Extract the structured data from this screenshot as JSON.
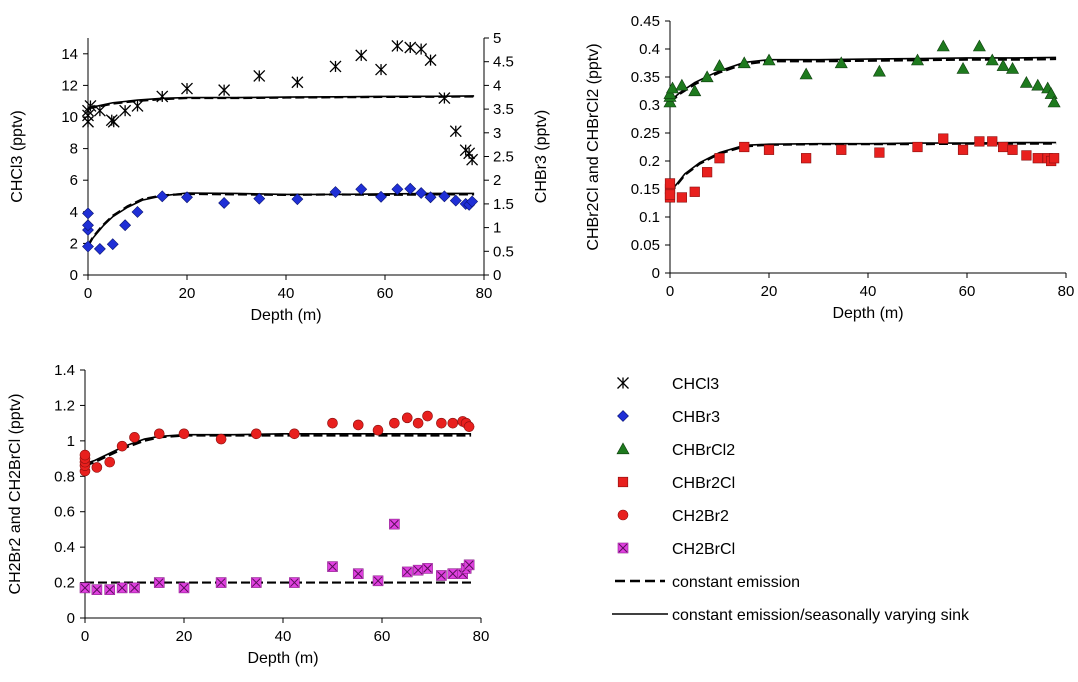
{
  "chart_data": [
    {
      "type": "scatter",
      "xlabel": "Depth (m)",
      "ylabel": "CHCl3 (pptv)",
      "y2label": "CHBr3 (pptv)",
      "xlim": [
        0,
        80
      ],
      "ylim": [
        0,
        15
      ],
      "y2lim": [
        0,
        5
      ],
      "xticks": [
        "0",
        "20",
        "40",
        "60",
        "80"
      ],
      "yticks": [
        "0",
        "2",
        "4",
        "6",
        "8",
        "10",
        "12",
        "14"
      ],
      "y2ticks": [
        "0",
        "0.5",
        "1",
        "1.5",
        "2",
        "2.5",
        "3",
        "3.5",
        "4",
        "4.5",
        "5"
      ],
      "series": [
        {
          "name": "CHCl3",
          "marker": "star",
          "axis": "y",
          "x": [
            0,
            0,
            0,
            0.5,
            2.4,
            4.8,
            5.2,
            7.5,
            10,
            15,
            20,
            27.5,
            34.6,
            42.3,
            50,
            55.2,
            59.2,
            62.5,
            65.1,
            67.3,
            69.2,
            72,
            74.3,
            76.3,
            77,
            77.6
          ],
          "y": [
            9.7,
            10.1,
            10.4,
            10.7,
            10.4,
            9.8,
            9.7,
            10.4,
            10.7,
            11.3,
            11.8,
            11.7,
            12.6,
            12.2,
            13.2,
            13.9,
            13.0,
            14.5,
            14.4,
            14.3,
            13.6,
            11.2,
            9.1,
            7.9,
            7.7,
            7.3
          ]
        },
        {
          "name": "CHBr3",
          "marker": "diamond",
          "axis": "y2",
          "x": [
            0,
            0,
            0,
            0,
            2.4,
            5,
            7.5,
            10,
            15,
            20,
            27.5,
            34.6,
            42.3,
            50,
            55.2,
            59.2,
            62.5,
            65.1,
            67.3,
            69.2,
            72,
            74.3,
            76.3,
            77,
            77.6
          ],
          "y": [
            0.6,
            0.95,
            1.05,
            1.3,
            0.55,
            0.65,
            1.05,
            1.33,
            1.66,
            1.64,
            1.52,
            1.61,
            1.6,
            1.75,
            1.81,
            1.65,
            1.81,
            1.82,
            1.73,
            1.64,
            1.66,
            1.57,
            1.5,
            1.48,
            1.55
          ]
        }
      ],
      "lines": [
        {
          "name": "constant emission",
          "axis": "y",
          "style": "dashed",
          "x": [
            0,
            2,
            5,
            10,
            15,
            20,
            30,
            40,
            50,
            60,
            70,
            78
          ],
          "y": [
            10.55,
            10.65,
            10.85,
            11.02,
            11.13,
            11.2,
            11.2,
            11.23,
            11.25,
            11.27,
            11.28,
            11.3
          ]
        },
        {
          "name": "constant emission/seasonally varying sink",
          "axis": "y",
          "style": "solid",
          "x": [
            0,
            2,
            5,
            10,
            15,
            20,
            30,
            40,
            50,
            60,
            70,
            78
          ],
          "y": [
            10.6,
            10.7,
            10.9,
            11.07,
            11.18,
            11.23,
            11.23,
            11.26,
            11.28,
            11.3,
            11.31,
            11.33
          ]
        },
        {
          "name": "constant emission",
          "axis": "y2",
          "style": "dashed",
          "x": [
            0,
            1,
            3,
            5,
            8,
            11,
            15,
            20,
            30,
            40,
            50,
            60,
            70,
            78
          ],
          "y": [
            0.62,
            0.8,
            1.05,
            1.25,
            1.45,
            1.6,
            1.68,
            1.71,
            1.7,
            1.69,
            1.7,
            1.69,
            1.7,
            1.7
          ]
        },
        {
          "name": "constant emission/seasonally varying sink",
          "axis": "y2",
          "style": "solid",
          "x": [
            0,
            1,
            3,
            5,
            8,
            11,
            15,
            20,
            30,
            40,
            50,
            60,
            70,
            78
          ],
          "y": [
            0.6,
            0.78,
            1.03,
            1.23,
            1.43,
            1.58,
            1.67,
            1.73,
            1.72,
            1.7,
            1.7,
            1.71,
            1.72,
            1.72
          ]
        }
      ]
    },
    {
      "type": "scatter",
      "xlabel": "Depth (m)",
      "ylabel": "CHBr2Cl and CHBrCl2 (pptv)",
      "xlim": [
        0,
        80
      ],
      "ylim": [
        0,
        0.45
      ],
      "xticks": [
        "0",
        "20",
        "40",
        "60",
        "80"
      ],
      "yticks": [
        "0",
        "0.05",
        "0.1",
        "0.15",
        "0.2",
        "0.25",
        "0.3",
        "0.35",
        "0.4",
        "0.45"
      ],
      "series": [
        {
          "name": "CHBrCl2",
          "marker": "triangle",
          "x": [
            0,
            0,
            0,
            0.5,
            2.4,
            5,
            7.5,
            10,
            15,
            20,
            27.5,
            34.6,
            42.3,
            50,
            55.2,
            59.2,
            62.5,
            65.1,
            67.3,
            69.2,
            72,
            74.3,
            76.3,
            77,
            77.6
          ],
          "y": [
            0.305,
            0.315,
            0.32,
            0.33,
            0.335,
            0.325,
            0.35,
            0.37,
            0.375,
            0.38,
            0.355,
            0.375,
            0.36,
            0.38,
            0.405,
            0.365,
            0.405,
            0.38,
            0.37,
            0.365,
            0.34,
            0.335,
            0.33,
            0.32,
            0.305
          ]
        },
        {
          "name": "CHBr2Cl",
          "marker": "square",
          "x": [
            0,
            0,
            0,
            0,
            2.4,
            5,
            7.5,
            10,
            15,
            20,
            27.5,
            34.6,
            42.3,
            50,
            55.2,
            59.2,
            62.5,
            65.1,
            67.3,
            69.2,
            72,
            74.3,
            76.3,
            77,
            77.6
          ],
          "y": [
            0.135,
            0.15,
            0.16,
            0.14,
            0.135,
            0.145,
            0.18,
            0.205,
            0.225,
            0.22,
            0.205,
            0.22,
            0.215,
            0.225,
            0.24,
            0.22,
            0.235,
            0.235,
            0.225,
            0.22,
            0.21,
            0.205,
            0.205,
            0.2,
            0.205
          ]
        }
      ],
      "lines": [
        {
          "name": "constant emission",
          "style": "dashed",
          "x": [
            0,
            2,
            5,
            8,
            10,
            15,
            20,
            30,
            40,
            50,
            60,
            70,
            78
          ],
          "y": [
            0.305,
            0.32,
            0.337,
            0.35,
            0.358,
            0.373,
            0.378,
            0.378,
            0.379,
            0.38,
            0.381,
            0.381,
            0.382
          ]
        },
        {
          "name": "constant emission/seasonally varying sink",
          "style": "solid",
          "x": [
            0,
            2,
            5,
            8,
            10,
            15,
            20,
            30,
            40,
            50,
            60,
            70,
            78
          ],
          "y": [
            0.307,
            0.322,
            0.34,
            0.353,
            0.361,
            0.376,
            0.381,
            0.381,
            0.382,
            0.383,
            0.384,
            0.384,
            0.385
          ]
        },
        {
          "name": "constant emission",
          "style": "dashed",
          "x": [
            0,
            1,
            3,
            6,
            10,
            15,
            20,
            30,
            40,
            50,
            60,
            70,
            78
          ],
          "y": [
            0.14,
            0.153,
            0.175,
            0.195,
            0.213,
            0.226,
            0.229,
            0.23,
            0.23,
            0.23,
            0.231,
            0.231,
            0.231
          ]
        },
        {
          "name": "constant emission/seasonally varying sink",
          "style": "solid",
          "x": [
            0,
            1,
            3,
            6,
            10,
            15,
            20,
            30,
            40,
            50,
            60,
            70,
            78
          ],
          "y": [
            0.142,
            0.155,
            0.177,
            0.197,
            0.215,
            0.228,
            0.23,
            0.231,
            0.231,
            0.232,
            0.232,
            0.233,
            0.233
          ]
        }
      ]
    },
    {
      "type": "scatter",
      "xlabel": "Depth (m)",
      "ylabel": "CH2Br2 and CH2BrCl (pptv)",
      "xlim": [
        0,
        80
      ],
      "ylim": [
        0,
        1.4
      ],
      "xticks": [
        "0",
        "20",
        "40",
        "60",
        "80"
      ],
      "yticks": [
        "0",
        "0.2",
        "0.4",
        "0.6",
        "0.8",
        "1",
        "1.2",
        "1.4"
      ],
      "series": [
        {
          "name": "CH2Br2",
          "marker": "circle",
          "x": [
            0,
            0,
            0,
            0,
            0,
            2.4,
            5,
            7.5,
            10,
            15,
            20,
            27.5,
            34.6,
            42.3,
            50,
            55.2,
            59.2,
            62.5,
            65.1,
            67.3,
            69.2,
            72,
            74.3,
            76.3,
            77,
            77.6
          ],
          "y": [
            0.83,
            0.86,
            0.88,
            0.9,
            0.92,
            0.85,
            0.88,
            0.97,
            1.02,
            1.04,
            1.04,
            1.01,
            1.04,
            1.04,
            1.1,
            1.09,
            1.06,
            1.1,
            1.13,
            1.1,
            1.14,
            1.1,
            1.1,
            1.11,
            1.1,
            1.08
          ]
        },
        {
          "name": "CH2BrCl",
          "marker": "square-x",
          "x": [
            0,
            2.4,
            5,
            7.5,
            10,
            15,
            20,
            27.5,
            34.6,
            42.3,
            50,
            55.2,
            59.2,
            62.5,
            65.1,
            67.3,
            69.2,
            72,
            74.3,
            76.3,
            77,
            77.6
          ],
          "y": [
            0.17,
            0.16,
            0.16,
            0.17,
            0.17,
            0.2,
            0.17,
            0.2,
            0.2,
            0.2,
            0.29,
            0.25,
            0.21,
            0.53,
            0.26,
            0.27,
            0.28,
            0.24,
            0.25,
            0.25,
            0.28,
            0.3
          ]
        }
      ],
      "lines": [
        {
          "name": "constant emission",
          "style": "dashed",
          "x": [
            0,
            2,
            5,
            8,
            12,
            15,
            20,
            30,
            40,
            50,
            60,
            70,
            78
          ],
          "y": [
            0.86,
            0.88,
            0.92,
            0.96,
            1.0,
            1.02,
            1.03,
            1.03,
            1.03,
            1.03,
            1.03,
            1.03,
            1.03
          ]
        },
        {
          "name": "constant emission/seasonally varying sink",
          "style": "solid",
          "x": [
            0,
            2,
            5,
            8,
            12,
            15,
            20,
            30,
            40,
            50,
            60,
            70,
            78
          ],
          "y": [
            0.87,
            0.89,
            0.93,
            0.97,
            1.01,
            1.025,
            1.035,
            1.035,
            1.04,
            1.04,
            1.04,
            1.04,
            1.04
          ]
        },
        {
          "name": "constant emission",
          "style": "dashed",
          "x": [
            0,
            78
          ],
          "y": [
            0.2,
            0.2
          ]
        }
      ]
    }
  ],
  "legend": {
    "entries": [
      {
        "label": "CHCl3",
        "marker": "star"
      },
      {
        "label": "CHBr3",
        "marker": "diamond"
      },
      {
        "label": "CHBrCl2",
        "marker": "triangle"
      },
      {
        "label": "CHBr2Cl",
        "marker": "square"
      },
      {
        "label": "CH2Br2",
        "marker": "circle"
      },
      {
        "label": "CH2BrCl",
        "marker": "square-x"
      },
      {
        "label": "constant emission",
        "marker": "dashed-line"
      },
      {
        "label": "constant emission/seasonally varying sink",
        "marker": "solid-line"
      }
    ]
  },
  "colors": {
    "CHCl3": "#000000",
    "CHBr3": "#1f2fd6",
    "CHBrCl2": "#1e7a1e",
    "CHBr2Cl": "#e8201e",
    "CH2Br2": "#e8201e",
    "CH2BrCl": "#e040e0",
    "lines": "#000000"
  }
}
